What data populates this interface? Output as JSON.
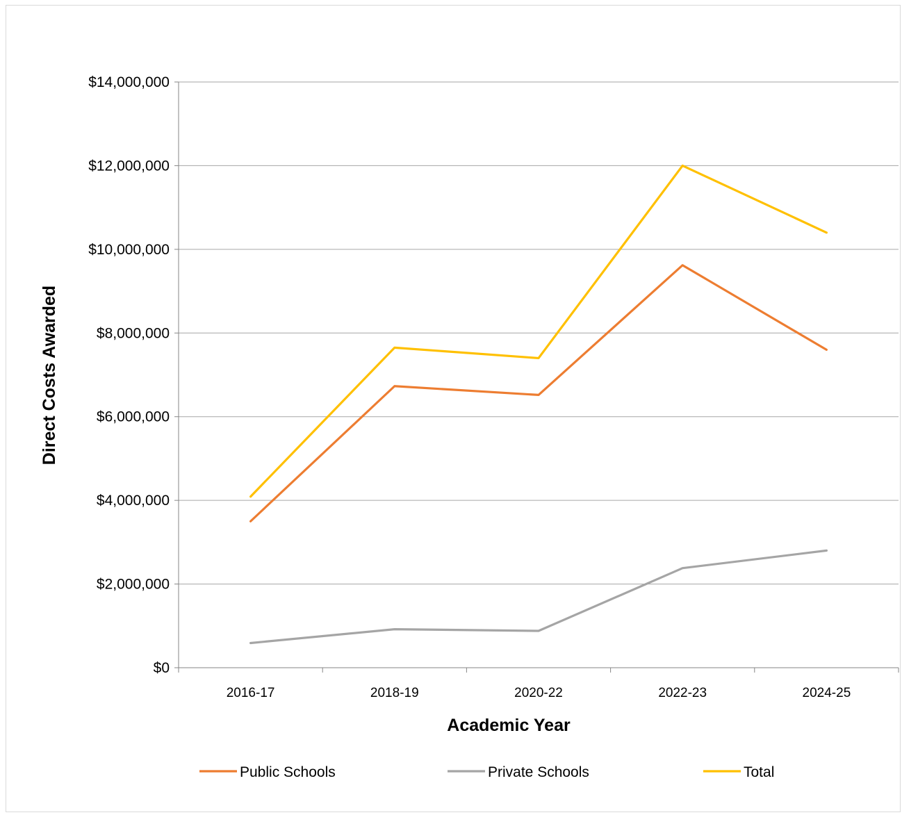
{
  "chart_data": {
    "type": "line",
    "title": "",
    "xlabel": "Academic Year",
    "ylabel": "Direct Costs Awarded",
    "categories": [
      "2016-17",
      "2018-19",
      "2020-22",
      "2022-23",
      "2024-25"
    ],
    "ylim": [
      0,
      14000000
    ],
    "yticks": [
      {
        "value": 0,
        "label": "$0"
      },
      {
        "value": 2000000,
        "label": "$2,000,000"
      },
      {
        "value": 4000000,
        "label": "$4,000,000"
      },
      {
        "value": 6000000,
        "label": "$6,000,000"
      },
      {
        "value": 8000000,
        "label": "$8,000,000"
      },
      {
        "value": 10000000,
        "label": "$10,000,000"
      },
      {
        "value": 12000000,
        "label": "$12,000,000"
      },
      {
        "value": 14000000,
        "label": "$14,000,000"
      }
    ],
    "grid": true,
    "legend_position": "bottom",
    "series": [
      {
        "name": "Public Schools",
        "color": "#ED7D31",
        "values": [
          3500000,
          6730000,
          6520000,
          9620000,
          7600000
        ]
      },
      {
        "name": "Private Schools",
        "color": "#A5A5A5",
        "values": [
          590000,
          920000,
          880000,
          2380000,
          2800000
        ]
      },
      {
        "name": "Total",
        "color": "#FFC000",
        "values": [
          4090000,
          7650000,
          7400000,
          12000000,
          10400000
        ]
      }
    ]
  }
}
